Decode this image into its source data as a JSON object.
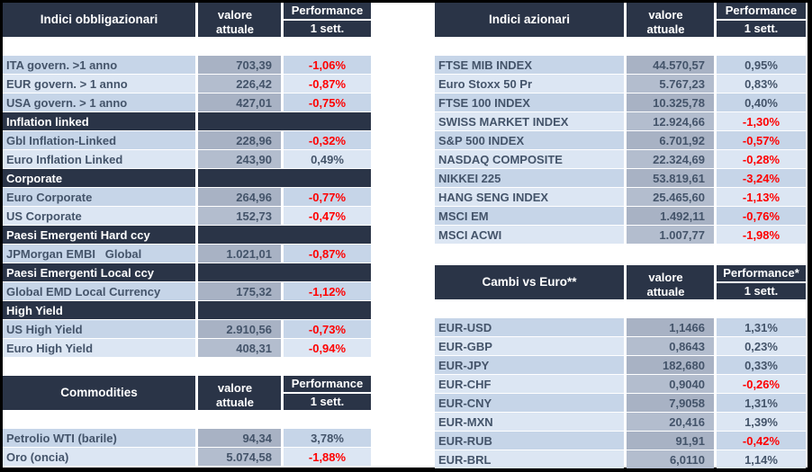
{
  "colors": {
    "frame": "#000000",
    "header_bg": "#2A3447",
    "header_text": "#FFFFFF",
    "row_dark": "#C6D5E8",
    "row_light": "#DCE6F3",
    "value_cell_dark": "#A8B2C4",
    "value_cell_light": "#B3BDCE",
    "text": "#44546A",
    "negative": "#FF0000"
  },
  "tables": {
    "bonds": {
      "title": "Indici obbligazionari",
      "header": {
        "value_line1": "valore",
        "value_line2": "attuale",
        "perf_line1": "Performance",
        "perf_line2": "1 sett."
      },
      "rows": [
        {
          "label": "ITA govern. >1 anno",
          "value": "703,39",
          "perf": "-1,06%",
          "neg": true
        },
        {
          "label": "EUR govern. > 1 anno",
          "value": "226,42",
          "perf": "-0,87%",
          "neg": true
        },
        {
          "label": "USA govern. > 1 anno",
          "value": "427,01",
          "perf": "-0,75%",
          "neg": true
        },
        {
          "section": true,
          "label": "Inflation linked"
        },
        {
          "label": "Gbl Inflation-Linked",
          "value": "228,96",
          "perf": "-0,32%",
          "neg": true
        },
        {
          "label": "Euro Inflation Linked",
          "value": "243,90",
          "perf": "0,49%",
          "neg": false
        },
        {
          "section": true,
          "label": "Corporate"
        },
        {
          "label": "Euro Corporate",
          "value": "264,96",
          "perf": "-0,77%",
          "neg": true
        },
        {
          "label": "US Corporate",
          "value": "152,73",
          "perf": "-0,47%",
          "neg": true
        },
        {
          "section": true,
          "label": "Paesi Emergenti Hard ccy"
        },
        {
          "label": "JPMorgan EMBI   Global",
          "value": "1.021,01",
          "perf": "-0,87%",
          "neg": true
        },
        {
          "section": true,
          "label": "Paesi Emergenti Local ccy"
        },
        {
          "label": "Global EMD Local Currency",
          "value": "175,32",
          "perf": "-1,12%",
          "neg": true
        },
        {
          "section": true,
          "label": "High Yield"
        },
        {
          "label": "US High Yield",
          "value": "2.910,56",
          "perf": "-0,73%",
          "neg": true
        },
        {
          "label": "Euro High Yield",
          "value": "408,31",
          "perf": "-0,94%",
          "neg": true
        }
      ]
    },
    "commodities": {
      "title": "Commodities",
      "header": {
        "value_line1": "valore",
        "value_line2": "attuale",
        "perf_line1": "Performance",
        "perf_line2": "1 sett."
      },
      "rows": [
        {
          "label": "Petrolio WTI (barile)",
          "value": "94,34",
          "perf": "3,78%",
          "neg": false
        },
        {
          "label": "Oro (oncia)",
          "value": "5.074,58",
          "perf": "-1,88%",
          "neg": true
        }
      ]
    },
    "equities": {
      "title": "Indici azionari",
      "header": {
        "value_line1": "valore",
        "value_line2": "attuale",
        "perf_line1": "Performance",
        "perf_line2": "1 sett."
      },
      "rows": [
        {
          "label": "FTSE MIB INDEX",
          "value": "44.570,57",
          "perf": "0,95%",
          "neg": false
        },
        {
          "label": "Euro Stoxx 50 Pr",
          "value": "5.767,23",
          "perf": "0,83%",
          "neg": false
        },
        {
          "label": "FTSE 100 INDEX",
          "value": "10.325,78",
          "perf": "0,40%",
          "neg": false
        },
        {
          "label": "SWISS MARKET INDEX",
          "value": "12.924,66",
          "perf": "-1,30%",
          "neg": true
        },
        {
          "label": "S&P 500 INDEX",
          "value": "6.701,92",
          "perf": "-0,57%",
          "neg": true
        },
        {
          "label": "NASDAQ COMPOSITE",
          "value": "22.324,69",
          "perf": "-0,28%",
          "neg": true
        },
        {
          "label": "NIKKEI 225",
          "value": "53.819,61",
          "perf": "-3,24%",
          "neg": true
        },
        {
          "label": "HANG SENG INDEX",
          "value": "25.465,60",
          "perf": "-1,13%",
          "neg": true
        },
        {
          "label": "MSCI EM",
          "value": "1.492,11",
          "perf": "-0,76%",
          "neg": true
        },
        {
          "label": "MSCI ACWI",
          "value": "1.007,77",
          "perf": "-1,98%",
          "neg": true
        }
      ]
    },
    "fx": {
      "title": "Cambi vs Euro**",
      "header": {
        "value_line1": "valore",
        "value_line2": "attuale",
        "perf_line1": "Performance*",
        "perf_line2": "1 sett."
      },
      "rows": [
        {
          "label": "EUR-USD",
          "value": "1,1466",
          "perf": "1,31%",
          "neg": false
        },
        {
          "label": "EUR-GBP",
          "value": "0,8643",
          "perf": "0,23%",
          "neg": false
        },
        {
          "label": "EUR-JPY",
          "value": "182,680",
          "perf": "0,33%",
          "neg": false
        },
        {
          "label": "EUR-CHF",
          "value": "0,9040",
          "perf": "-0,26%",
          "neg": true
        },
        {
          "label": "EUR-CNY",
          "value": "7,9058",
          "perf": "1,31%",
          "neg": false
        },
        {
          "label": "EUR-MXN",
          "value": "20,416",
          "perf": "1,39%",
          "neg": false
        },
        {
          "label": "EUR-RUB",
          "value": "91,91",
          "perf": "-0,42%",
          "neg": true
        },
        {
          "label": "EUR-BRL",
          "value": "6,0110",
          "perf": "1,14%",
          "neg": false
        }
      ]
    }
  }
}
